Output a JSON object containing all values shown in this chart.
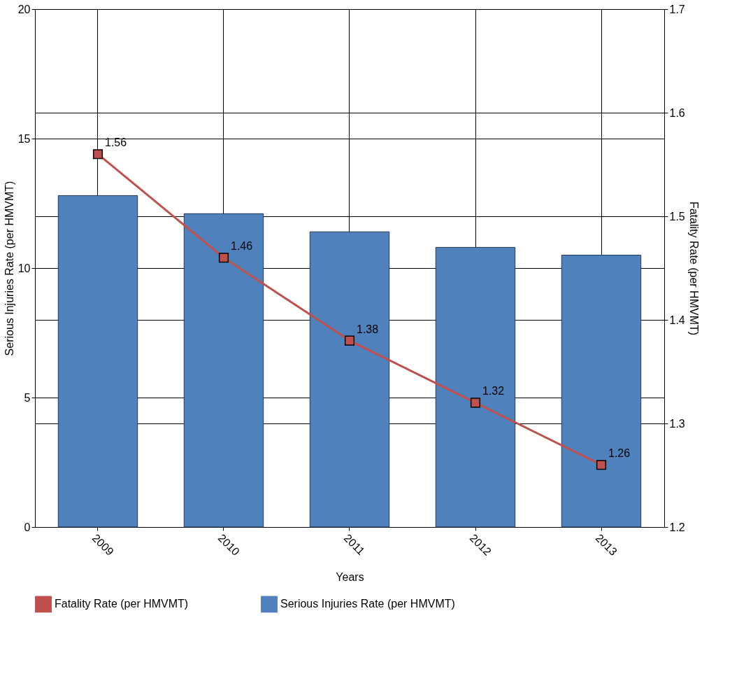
{
  "chart_data": {
    "type": "bar",
    "categories": [
      "2009",
      "2010",
      "2011",
      "2012",
      "2013"
    ],
    "xlabel": "Years",
    "ylabel": "Serious Injuries Rate (per HMVMT)",
    "y2label": "Fatality Rate (per HMVMT)",
    "series": [
      {
        "name": "Fatality Rate (per HMVMT)",
        "type": "line",
        "axis": "y2",
        "color": "#c0504d",
        "values": [
          1.56,
          1.46,
          1.38,
          1.32,
          1.26
        ],
        "value_labels": [
          "1.56",
          "1.46",
          "1.38",
          "1.32",
          "1.26"
        ]
      },
      {
        "name": "Serious Injuries Rate (per HMVMT)",
        "color": "#4f81bd",
        "values": [
          12.8,
          12.1,
          11.4,
          10.8,
          10.5
        ]
      }
    ],
    "ylim": [
      0,
      20
    ],
    "yticks": [
      0,
      5,
      10,
      15,
      20
    ],
    "y2lim": [
      1.2,
      1.7
    ],
    "y2ticks": [
      1.2,
      1.3,
      1.4,
      1.5,
      1.6,
      1.7
    ],
    "grid": true,
    "legend": "bottom",
    "marker": "square",
    "line_style": "solid"
  }
}
